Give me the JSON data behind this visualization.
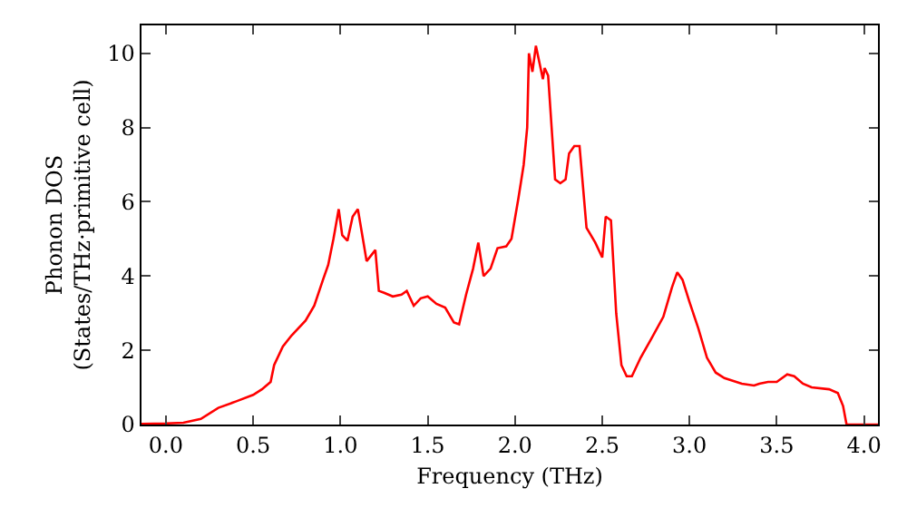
{
  "chart_data": {
    "type": "line",
    "xlabel": "Frequency (THz)",
    "ylabel": "Phonon DOS\n(States/THz·primitive cell)",
    "xlim": [
      -0.14,
      4.08
    ],
    "ylim": [
      0,
      10.75
    ],
    "xticks": [
      {
        "value": 0,
        "label": "0.0"
      },
      0.5,
      {
        "value": 1,
        "label": "1.0"
      },
      1.5,
      {
        "value": 2,
        "label": "2.0"
      },
      2.5,
      {
        "value": 3,
        "label": "3.0"
      },
      3.5,
      {
        "value": 4,
        "label": "4.0"
      }
    ],
    "yticks": [
      0,
      2,
      4,
      6,
      8,
      10
    ],
    "grid": false,
    "series": [
      {
        "color": "#ff0000",
        "x": [
          -0.14,
          0,
          0.1,
          0.2,
          0.3,
          0.4,
          0.5,
          0.55,
          0.6,
          0.62,
          0.67,
          0.72,
          0.8,
          0.85,
          0.9,
          0.93,
          0.96,
          0.99,
          1.01,
          1.04,
          1.07,
          1.1,
          1.15,
          1.2,
          1.22,
          1.25,
          1.3,
          1.35,
          1.38,
          1.42,
          1.46,
          1.5,
          1.55,
          1.6,
          1.65,
          1.68,
          1.72,
          1.76,
          1.79,
          1.82,
          1.86,
          1.9,
          1.95,
          1.98,
          2.02,
          2.05,
          2.07,
          2.08,
          2.1,
          2.12,
          2.16,
          2.17,
          2.19,
          2.23,
          2.26,
          2.29,
          2.31,
          2.34,
          2.37,
          2.41,
          2.46,
          2.5,
          2.52,
          2.55,
          2.58,
          2.61,
          2.64,
          2.67,
          2.72,
          2.78,
          2.85,
          2.9,
          2.93,
          2.96,
          3.0,
          3.05,
          3.1,
          3.15,
          3.2,
          3.3,
          3.37,
          3.4,
          3.45,
          3.5,
          3.56,
          3.6,
          3.65,
          3.7,
          3.8,
          3.85,
          3.88,
          3.9,
          4.08
        ],
        "values": [
          0.02,
          0.03,
          0.05,
          0.15,
          0.45,
          0.62,
          0.8,
          0.95,
          1.15,
          1.6,
          2.1,
          2.4,
          2.8,
          3.2,
          3.9,
          4.3,
          5.0,
          5.8,
          5.1,
          4.95,
          5.6,
          5.8,
          4.4,
          4.7,
          3.6,
          3.55,
          3.45,
          3.5,
          3.6,
          3.2,
          3.4,
          3.45,
          3.25,
          3.15,
          2.75,
          2.7,
          3.5,
          4.2,
          4.9,
          4.0,
          4.2,
          4.75,
          4.8,
          5.0,
          6.1,
          7.0,
          8.0,
          10.0,
          9.5,
          10.2,
          9.3,
          9.6,
          9.4,
          6.6,
          6.5,
          6.6,
          7.3,
          7.5,
          7.5,
          5.3,
          4.9,
          4.5,
          5.6,
          5.5,
          3.0,
          1.6,
          1.3,
          1.3,
          1.8,
          2.3,
          2.9,
          3.7,
          4.1,
          3.9,
          3.3,
          2.6,
          1.8,
          1.4,
          1.25,
          1.1,
          1.05,
          1.1,
          1.15,
          1.15,
          1.35,
          1.3,
          1.1,
          1.0,
          0.95,
          0.85,
          0.5,
          0.0,
          0.0
        ]
      }
    ]
  }
}
